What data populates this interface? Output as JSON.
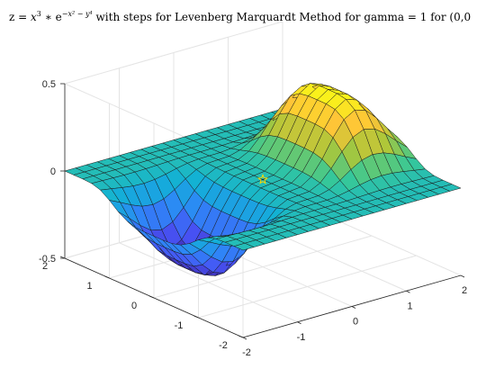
{
  "chart_data": {
    "type": "surface",
    "title_prefix": "z = ",
    "title_eq_main": "x",
    "title_eq_sup": "3",
    "title_eq_mid": " ∗ e",
    "title_eq_exp": "−x² − y⁴",
    "title_suffix": " with steps for Levenberg Marquardt Method for gamma = 1 for (0,0",
    "function": "z = x^3 * exp(-x^2 - y^4)",
    "x_range": [
      -2,
      2
    ],
    "y_range": [
      -2,
      2
    ],
    "z_range": [
      -0.5,
      0.5
    ],
    "x_ticks": [
      "-2",
      "-1",
      "0",
      "1",
      "2"
    ],
    "y_ticks": [
      "-2",
      "-1",
      "0",
      "1",
      "2"
    ],
    "z_ticks": [
      "-0.5",
      "0",
      "0.5"
    ],
    "grid": true,
    "colormap": "parula",
    "marker": {
      "x": 0,
      "y": 0,
      "z": 0,
      "symbol": "star",
      "color": "#ffd700"
    }
  }
}
